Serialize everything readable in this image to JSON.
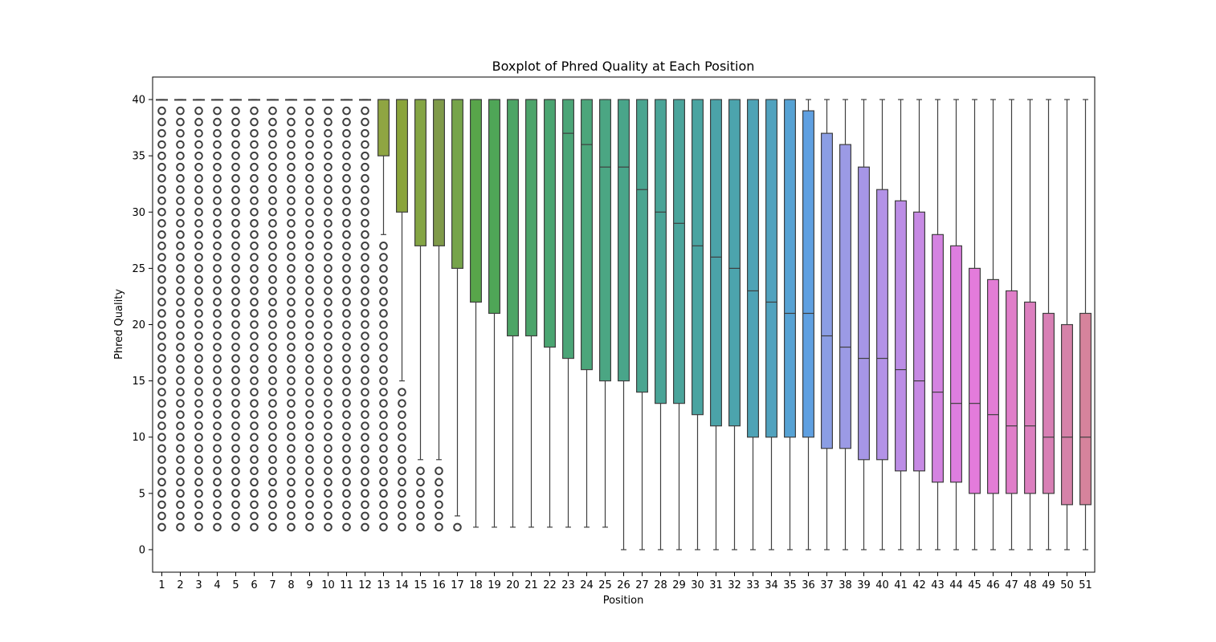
{
  "chart_data": {
    "type": "box",
    "title": "Boxplot of Phred Quality at Each Position",
    "xlabel": "Position",
    "ylabel": "Phred Quality",
    "ylim": [
      -2,
      42
    ],
    "yticks": [
      0,
      5,
      10,
      15,
      20,
      25,
      30,
      35,
      40
    ],
    "grid": false,
    "categories": [
      "1",
      "2",
      "3",
      "4",
      "5",
      "6",
      "7",
      "8",
      "9",
      "10",
      "11",
      "12",
      "13",
      "14",
      "15",
      "16",
      "17",
      "18",
      "19",
      "20",
      "21",
      "22",
      "23",
      "24",
      "25",
      "26",
      "27",
      "28",
      "29",
      "30",
      "31",
      "32",
      "33",
      "34",
      "35",
      "36",
      "37",
      "38",
      "39",
      "40",
      "41",
      "42",
      "43",
      "44",
      "45",
      "46",
      "47",
      "48",
      "49",
      "50",
      "51"
    ],
    "boxes": [
      {
        "min": 40,
        "q1": 40,
        "median": 40,
        "q3": 40,
        "max": 40,
        "outliers": [
          2,
          39
        ]
      },
      {
        "min": 40,
        "q1": 40,
        "median": 40,
        "q3": 40,
        "max": 40,
        "outliers": [
          2,
          39
        ]
      },
      {
        "min": 40,
        "q1": 40,
        "median": 40,
        "q3": 40,
        "max": 40,
        "outliers": [
          2,
          39
        ]
      },
      {
        "min": 40,
        "q1": 40,
        "median": 40,
        "q3": 40,
        "max": 40,
        "outliers": [
          2,
          39
        ]
      },
      {
        "min": 40,
        "q1": 40,
        "median": 40,
        "q3": 40,
        "max": 40,
        "outliers": [
          2,
          39
        ]
      },
      {
        "min": 40,
        "q1": 40,
        "median": 40,
        "q3": 40,
        "max": 40,
        "outliers": [
          2,
          39
        ]
      },
      {
        "min": 40,
        "q1": 40,
        "median": 40,
        "q3": 40,
        "max": 40,
        "outliers": [
          2,
          39
        ]
      },
      {
        "min": 40,
        "q1": 40,
        "median": 40,
        "q3": 40,
        "max": 40,
        "outliers": [
          2,
          39
        ]
      },
      {
        "min": 40,
        "q1": 40,
        "median": 40,
        "q3": 40,
        "max": 40,
        "outliers": [
          2,
          39
        ]
      },
      {
        "min": 40,
        "q1": 40,
        "median": 40,
        "q3": 40,
        "max": 40,
        "outliers": [
          2,
          39
        ]
      },
      {
        "min": 40,
        "q1": 40,
        "median": 40,
        "q3": 40,
        "max": 40,
        "outliers": [
          2,
          39
        ]
      },
      {
        "min": 40,
        "q1": 40,
        "median": 40,
        "q3": 40,
        "max": 40,
        "outliers": [
          2,
          39
        ]
      },
      {
        "min": 28,
        "q1": 35,
        "median": 40,
        "q3": 40,
        "max": 40,
        "outliers": [
          2,
          27
        ]
      },
      {
        "min": 15,
        "q1": 30,
        "median": 40,
        "q3": 40,
        "max": 40,
        "outliers": [
          2,
          14
        ]
      },
      {
        "min": 8,
        "q1": 27,
        "median": 40,
        "q3": 40,
        "max": 40,
        "outliers": [
          2,
          7
        ]
      },
      {
        "min": 8,
        "q1": 27,
        "median": 40,
        "q3": 40,
        "max": 40,
        "outliers": [
          2,
          7
        ]
      },
      {
        "min": 3,
        "q1": 25,
        "median": 40,
        "q3": 40,
        "max": 40,
        "outliers": [
          2,
          2
        ]
      },
      {
        "min": 2,
        "q1": 22,
        "median": 40,
        "q3": 40,
        "max": 40,
        "outliers": []
      },
      {
        "min": 2,
        "q1": 21,
        "median": 40,
        "q3": 40,
        "max": 40,
        "outliers": []
      },
      {
        "min": 2,
        "q1": 19,
        "median": 40,
        "q3": 40,
        "max": 40,
        "outliers": []
      },
      {
        "min": 2,
        "q1": 19,
        "median": 40,
        "q3": 40,
        "max": 40,
        "outliers": []
      },
      {
        "min": 2,
        "q1": 18,
        "median": 40,
        "q3": 40,
        "max": 40,
        "outliers": []
      },
      {
        "min": 2,
        "q1": 17,
        "median": 37,
        "q3": 40,
        "max": 40,
        "outliers": []
      },
      {
        "min": 2,
        "q1": 16,
        "median": 36,
        "q3": 40,
        "max": 40,
        "outliers": []
      },
      {
        "min": 2,
        "q1": 15,
        "median": 34,
        "q3": 40,
        "max": 40,
        "outliers": []
      },
      {
        "min": 0,
        "q1": 15,
        "median": 34,
        "q3": 40,
        "max": 40,
        "outliers": []
      },
      {
        "min": 0,
        "q1": 14,
        "median": 32,
        "q3": 40,
        "max": 40,
        "outliers": []
      },
      {
        "min": 0,
        "q1": 13,
        "median": 30,
        "q3": 40,
        "max": 40,
        "outliers": []
      },
      {
        "min": 0,
        "q1": 13,
        "median": 29,
        "q3": 40,
        "max": 40,
        "outliers": []
      },
      {
        "min": 0,
        "q1": 12,
        "median": 27,
        "q3": 40,
        "max": 40,
        "outliers": []
      },
      {
        "min": 0,
        "q1": 11,
        "median": 26,
        "q3": 40,
        "max": 40,
        "outliers": []
      },
      {
        "min": 0,
        "q1": 11,
        "median": 25,
        "q3": 40,
        "max": 40,
        "outliers": []
      },
      {
        "min": 0,
        "q1": 10,
        "median": 23,
        "q3": 40,
        "max": 40,
        "outliers": []
      },
      {
        "min": 0,
        "q1": 10,
        "median": 22,
        "q3": 40,
        "max": 40,
        "outliers": []
      },
      {
        "min": 0,
        "q1": 10,
        "median": 21,
        "q3": 40,
        "max": 40,
        "outliers": []
      },
      {
        "min": 0,
        "q1": 10,
        "median": 21,
        "q3": 39,
        "max": 40,
        "outliers": []
      },
      {
        "min": 0,
        "q1": 9,
        "median": 19,
        "q3": 37,
        "max": 40,
        "outliers": []
      },
      {
        "min": 0,
        "q1": 9,
        "median": 18,
        "q3": 36,
        "max": 40,
        "outliers": []
      },
      {
        "min": 0,
        "q1": 8,
        "median": 17,
        "q3": 34,
        "max": 40,
        "outliers": []
      },
      {
        "min": 0,
        "q1": 8,
        "median": 17,
        "q3": 32,
        "max": 40,
        "outliers": []
      },
      {
        "min": 0,
        "q1": 7,
        "median": 16,
        "q3": 31,
        "max": 40,
        "outliers": []
      },
      {
        "min": 0,
        "q1": 7,
        "median": 15,
        "q3": 30,
        "max": 40,
        "outliers": []
      },
      {
        "min": 0,
        "q1": 6,
        "median": 14,
        "q3": 28,
        "max": 40,
        "outliers": []
      },
      {
        "min": 0,
        "q1": 6,
        "median": 13,
        "q3": 27,
        "max": 40,
        "outliers": []
      },
      {
        "min": 0,
        "q1": 5,
        "median": 13,
        "q3": 25,
        "max": 40,
        "outliers": []
      },
      {
        "min": 0,
        "q1": 5,
        "median": 12,
        "q3": 24,
        "max": 40,
        "outliers": []
      },
      {
        "min": 0,
        "q1": 5,
        "median": 11,
        "q3": 23,
        "max": 40,
        "outliers": []
      },
      {
        "min": 0,
        "q1": 5,
        "median": 11,
        "q3": 22,
        "max": 40,
        "outliers": []
      },
      {
        "min": 0,
        "q1": 5,
        "median": 10,
        "q3": 21,
        "max": 40,
        "outliers": []
      },
      {
        "min": 0,
        "q1": 4,
        "median": 10,
        "q3": 20,
        "max": 40,
        "outliers": []
      },
      {
        "min": 0,
        "q1": 4,
        "median": 10,
        "q3": 21,
        "max": 40,
        "outliers": []
      }
    ],
    "colors": [
      "#d37d7b",
      "#d37f74",
      "#d3816a",
      "#d1845d",
      "#ca8b51",
      "#c38f51",
      "#bb9451",
      "#b59651",
      "#ae9952",
      "#a79d52",
      "#a09f52",
      "#99a253",
      "#8fa542",
      "#8aa43a",
      "#84a544",
      "#7f9a49",
      "#76a44a",
      "#58a54a",
      "#4fa657",
      "#4da566",
      "#4ca46b",
      "#4aa571",
      "#4ba577",
      "#4ca67b",
      "#4ba683",
      "#49a58a",
      "#4aa590",
      "#4aa497",
      "#4aa49b",
      "#4aa4a1",
      "#4ba3a8",
      "#4ca4ad",
      "#4ea3b6",
      "#51a2be",
      "#56a2d4",
      "#5fa0e1",
      "#8b9ee4",
      "#9b9ae5",
      "#a696e6",
      "#b392e7",
      "#bc8de6",
      "#c78ae4",
      "#d483e1",
      "#dd7ee0",
      "#e37bdb",
      "#e37dd5",
      "#e07ec9",
      "#dc7fbf",
      "#d880b5",
      "#d682a9",
      "#d6839c"
    ],
    "edgecolor": "#3f3f3f"
  }
}
